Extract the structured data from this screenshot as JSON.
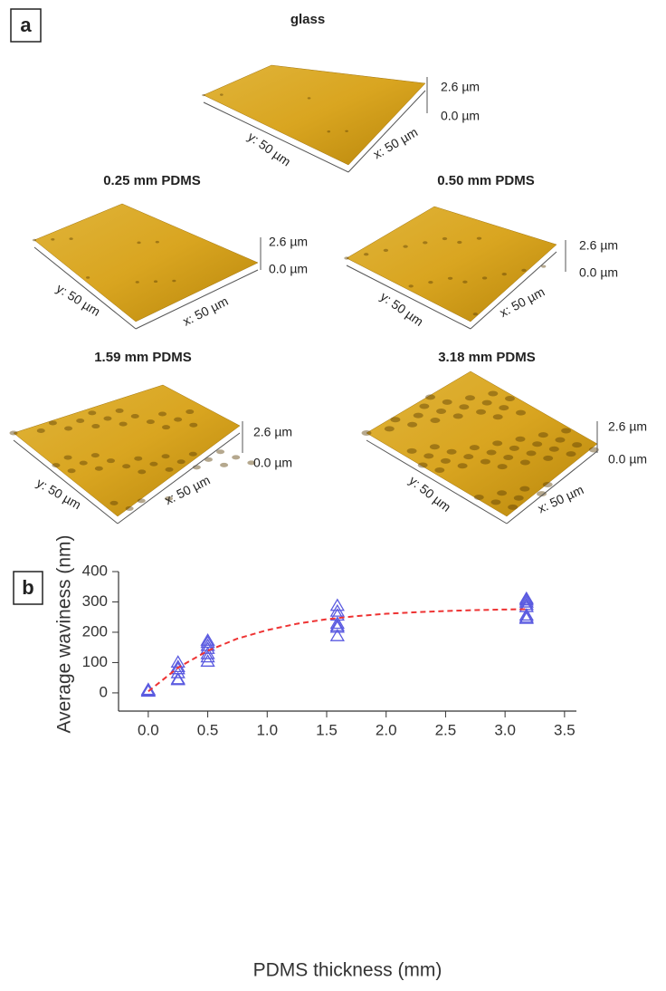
{
  "panel_a": {
    "label": "a",
    "tiles": [
      {
        "title": "glass",
        "z_top": "2.6 µm",
        "z_bottom": "0.0 µm",
        "y_label": "y: 50 µm",
        "x_label": "x: 50 µm"
      },
      {
        "title": "0.25 mm PDMS",
        "z_top": "2.6 µm",
        "z_bottom": "0.0 µm",
        "y_label": "y: 50 µm",
        "x_label": "x: 50 µm"
      },
      {
        "title": "0.50 mm PDMS",
        "z_top": "2.6 µm",
        "z_bottom": "0.0 µm",
        "y_label": "y: 50 µm",
        "x_label": "x: 50 µm"
      },
      {
        "title": "1.59 mm PDMS",
        "z_top": "2.6 µm",
        "z_bottom": "0.0 µm",
        "y_label": "y: 50 µm",
        "x_label": "x: 50 µm"
      },
      {
        "title": "3.18 mm PDMS",
        "z_top": "2.6 µm",
        "z_bottom": "0.0 µm",
        "y_label": "y: 50 µm",
        "x_label": "x: 50 µm"
      }
    ]
  },
  "chart_data": {
    "type": "scatter",
    "label": "b",
    "x_label": "PDMS thickness (mm)",
    "y_label": "Average waviness (nm)",
    "xlim": [
      -0.25,
      3.6
    ],
    "ylim": [
      -60,
      400
    ],
    "xticks": [
      {
        "value": 0,
        "label": "0.0"
      },
      0.5,
      {
        "value": 1,
        "label": "1.0"
      },
      1.5,
      {
        "value": 2,
        "label": "2.0"
      },
      2.5,
      {
        "value": 3,
        "label": "3.0"
      },
      3.5
    ],
    "yticks": [
      0,
      100,
      200,
      300,
      400
    ],
    "series": [
      {
        "color": "#5a5ae0",
        "marker": "triangle",
        "x": [
          0,
          0,
          0,
          0,
          0.25,
          0.25,
          0.25,
          0.25,
          0.25,
          0.25,
          0.5,
          0.5,
          0.5,
          0.5,
          0.5,
          0.5,
          0.5,
          1.59,
          1.59,
          1.59,
          1.59,
          1.59,
          1.59,
          1.59,
          3.18,
          3.18,
          3.18,
          3.18,
          3.18,
          3.18,
          3.18,
          3.18
        ],
        "values": [
          4,
          6,
          8,
          10,
          42,
          45,
          65,
          78,
          85,
          100,
          103,
          117,
          128,
          145,
          155,
          165,
          172,
          187,
          215,
          220,
          228,
          255,
          268,
          287,
          244,
          248,
          255,
          283,
          290,
          298,
          305,
          310
        ]
      },
      {
        "color": "#ee3333",
        "style": "dashed-line",
        "x": [
          0,
          0.25,
          0.5,
          0.75,
          1,
          1.25,
          1.5,
          1.75,
          2,
          2.25,
          2.5,
          2.75,
          3,
          3.18
        ],
        "values": [
          5,
          83,
          139,
          179,
          207,
          228,
          243,
          253,
          261,
          266,
          270,
          273,
          275,
          276
        ]
      }
    ]
  }
}
